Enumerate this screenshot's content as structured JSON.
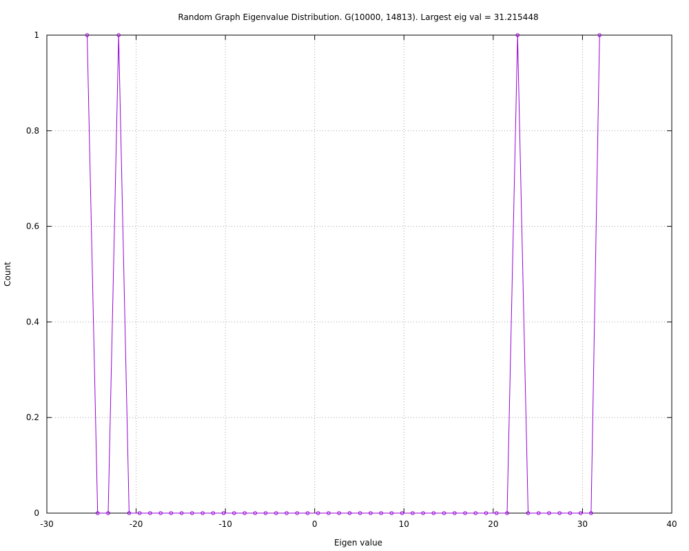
{
  "chart_data": {
    "type": "line",
    "title": "Random Graph Eigenvalue Distribution. G(10000, 14813). Largest eig val = 31.215448",
    "xlabel": "Eigen value",
    "ylabel": "Count",
    "xlim": [
      -30,
      40
    ],
    "ylim": [
      0,
      1
    ],
    "xticks": [
      -30,
      -20,
      -10,
      0,
      10,
      20,
      30,
      40
    ],
    "yticks": [
      0,
      0.2,
      0.4,
      0.6,
      0.8,
      1
    ],
    "xtick_labels": [
      "-30",
      "-20",
      "-10",
      "0",
      "10",
      "20",
      "30",
      "40"
    ],
    "ytick_labels": [
      "0",
      "0.2",
      "0.4",
      "0.6",
      "0.8",
      "1"
    ],
    "grid": true,
    "legend": "none",
    "series_color": "#9400d3",
    "series": [
      {
        "x": [
          -25.487,
          -24.311,
          -23.135,
          -21.959,
          -20.783,
          -19.607,
          -18.431,
          -17.255,
          -16.079,
          -14.903,
          -13.727,
          -12.551,
          -11.375,
          -10.199,
          -9.023,
          -7.847,
          -6.671,
          -5.495,
          -4.319,
          -3.143,
          -1.967,
          -0.791,
          0.385,
          1.561,
          2.737,
          3.913,
          5.089,
          6.265,
          7.441,
          8.617,
          9.793,
          10.969,
          12.145,
          13.321,
          14.497,
          15.673,
          16.849,
          18.025,
          19.201,
          20.377,
          21.553,
          22.729,
          23.905,
          25.081,
          26.257,
          27.433,
          28.609,
          29.785,
          30.961,
          31.91
        ],
        "values": [
          1,
          0,
          0,
          1,
          0,
          0,
          0,
          0,
          0,
          0,
          0,
          0,
          0,
          0,
          0,
          0,
          0,
          0,
          0,
          0,
          0,
          0,
          0,
          0,
          0,
          0,
          0,
          0,
          0,
          0,
          0,
          0,
          0,
          0,
          0,
          0,
          0,
          0,
          0,
          0,
          0,
          1,
          0,
          0,
          0,
          0,
          0,
          0,
          0,
          1
        ]
      }
    ]
  }
}
